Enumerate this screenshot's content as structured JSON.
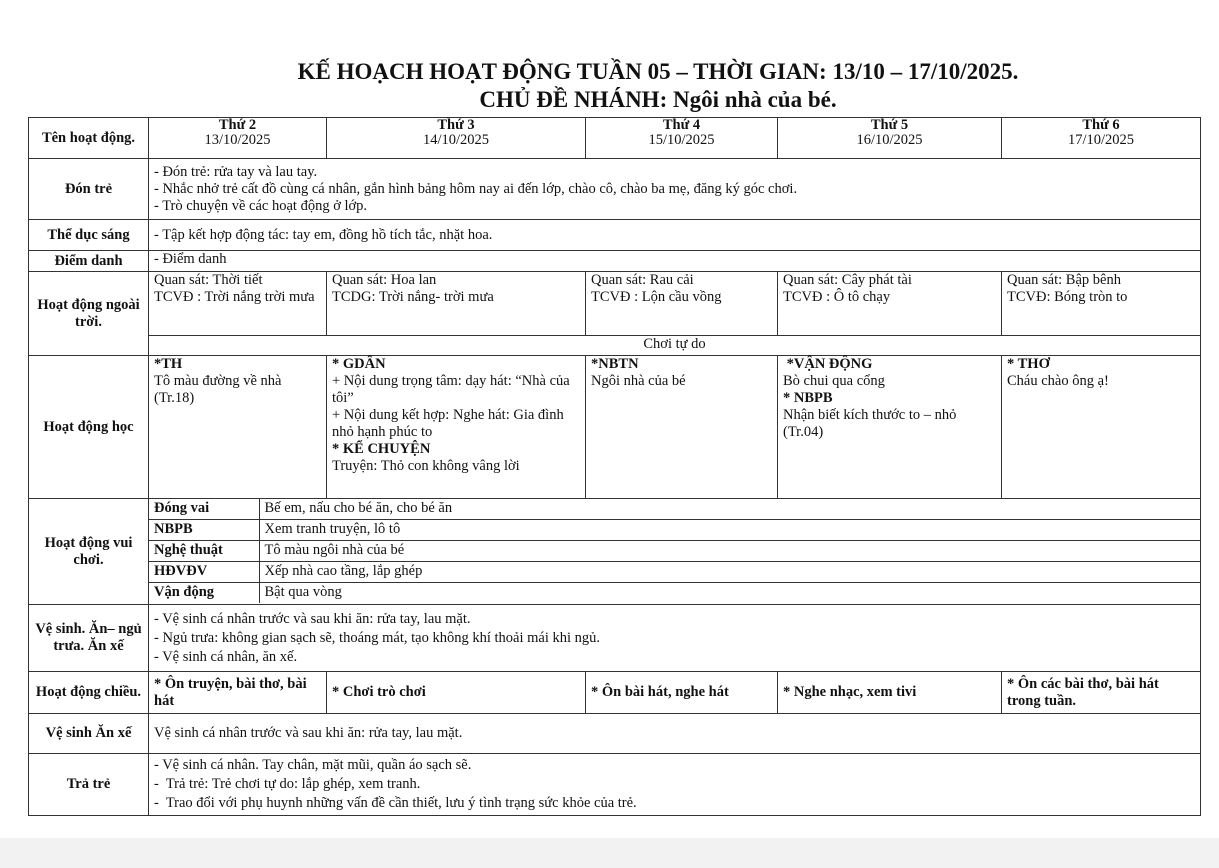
{
  "title": "KẾ HOẠCH HOẠT ĐỘNG TUẦN 05 – THỜI GIAN: 13/10 – 17/10/2025.",
  "subtitle": "CHỦ ĐỀ NHÁNH: Ngôi nhà của bé.",
  "header": {
    "first": "Tên hoạt động.",
    "days": [
      {
        "day": "Thứ 2",
        "date": "13/10/2025"
      },
      {
        "day": "Thứ 3",
        "date": "14/10/2025"
      },
      {
        "day": "Thứ 4",
        "date": "15/10/2025"
      },
      {
        "day": "Thứ 5",
        "date": "16/10/2025"
      },
      {
        "day": "Thứ 6",
        "date": "17/10/2025"
      }
    ]
  },
  "don_tre": {
    "label": "Đón trẻ",
    "lines": [
      "- Đón trẻ: rửa tay và lau tay.",
      "- Nhắc nhở trẻ cất đồ cùng cá nhân, gắn hình bảng hôm nay ai đến lớp, chào cô, chào ba mẹ, đăng ký góc chơi.",
      "- Trò chuyện về các hoạt động ở lớp."
    ]
  },
  "the_duc": {
    "label": "Thể dục sáng",
    "text": "- Tập kết hợp động tác: tay em, đồng hồ tích tắc, nhặt hoa."
  },
  "diem_danh": {
    "label": "Điểm danh",
    "text": "- Điểm danh"
  },
  "ngoai_troi": {
    "label": "Hoạt động ngoài trời.",
    "cells": [
      [
        "Quan sát: Thời tiết",
        "TCVĐ : Trời nắng trời mưa"
      ],
      [
        "Quan sát: Hoa lan",
        "TCDG: Trời nắng- trời mưa"
      ],
      [
        "Quan sát: Rau cải",
        "TCVĐ : Lộn cầu vồng"
      ],
      [
        "Quan sát: Cây phát tài",
        "TCVĐ : Ô tô chạy"
      ],
      [
        "Quan sát: Bập bênh",
        "TCVĐ: Bóng tròn to"
      ]
    ],
    "free_play": "Chơi tự do"
  },
  "hoc": {
    "label": "Hoạt động học",
    "d2": {
      "head": "*TH",
      "lines": [
        "Tô màu đường về nhà (Tr.18)"
      ]
    },
    "d3": {
      "head": "* GDÂN",
      "lines": [
        "+ Nội dung trọng tâm: dạy hát: “Nhà của tôi”",
        "+ Nội dung kết hợp: Nghe hát: Gia đình nhỏ hạnh phúc to"
      ],
      "head2": "* KỂ CHUYỆN",
      "lines2": [
        "Truyện: Thỏ con không vâng lời"
      ]
    },
    "d4": {
      "head": "*NBTN",
      "lines": [
        "Ngôi nhà của bé"
      ]
    },
    "d5": {
      "head": " *VẬN ĐỘNG",
      "lines": [
        "Bò chui qua cổng"
      ],
      "head2": "* NBPB",
      "lines2": [
        "Nhận biết kích thước to – nhỏ (Tr.04)"
      ]
    },
    "d6": {
      "head": "* THƠ",
      "lines": [
        "Cháu chào ông ạ!"
      ]
    }
  },
  "vui_choi": {
    "label": "Hoạt động vui chơi.",
    "rows": [
      {
        "corner": "Đóng vai",
        "text": "Bế em, nấu cho bé ăn, cho bé ăn"
      },
      {
        "corner": "NBPB",
        "text": "Xem tranh truyện, lô tô"
      },
      {
        "corner": "Nghệ thuật",
        "text": "Tô màu ngôi nhà của bé"
      },
      {
        "corner": "HĐVĐV",
        "text": "Xếp nhà cao tầng, lắp ghép"
      },
      {
        "corner": "Vận động",
        "text": "Bật qua vòng"
      }
    ]
  },
  "ve_sinh": {
    "label": "Vệ sinh. Ăn– ngủ trưa. Ăn xế",
    "lines": [
      "- Vệ sinh cá nhân trước và sau khi ăn: rửa tay, lau mặt.",
      "- Ngủ trưa: không gian sạch sẽ, thoáng mát, tạo không khí thoải mái khi ngủ.",
      "- Vệ sinh cá nhân, ăn xế."
    ]
  },
  "chieu": {
    "label": "Hoạt động chiều.",
    "cells": [
      "* Ôn truyện, bài thơ, bài hát",
      "* Chơi trò chơi",
      "* Ôn bài hát, nghe hát",
      "* Nghe nhạc, xem tivi",
      "* Ôn các bài thơ, bài hát trong tuần."
    ]
  },
  "an_xe": {
    "label": "Vệ sinh Ăn xế",
    "text": "Vệ sinh cá nhân trước và sau khi ăn: rửa tay, lau mặt."
  },
  "tra_tre": {
    "label": "Trả trẻ",
    "lines": [
      "- Vệ sinh cá nhân. Tay chân, mặt mũi, quần áo sạch sẽ.",
      "-  Trả trẻ: Trẻ chơi tự do: lắp ghép, xem tranh.",
      "-  Trao đổi với phụ huynh những vấn đề cần thiết, lưu ý tình trạng sức khỏe của trẻ."
    ]
  }
}
